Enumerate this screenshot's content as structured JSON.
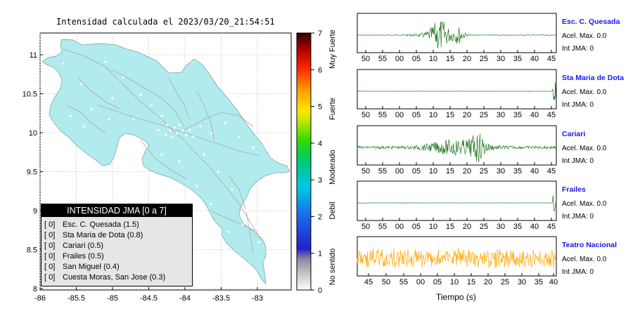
{
  "map": {
    "title": "Intensidad calculada el 2023/03/20_21:54:51",
    "x_ticks": [
      "-86",
      "-85.5",
      "-85",
      "-84.5",
      "-84",
      "-83.5",
      "-83"
    ],
    "y_ticks": [
      "11",
      "10.5",
      "10",
      "9.5",
      "9",
      "8.5",
      "8"
    ],
    "land_color": "#b2ebed",
    "legend": {
      "title": "INTENSIDAD JMA [0 a 7]",
      "items": [
        {
          "sym": "[ 0]",
          "label": "Esc. C. Quesada (1.5)"
        },
        {
          "sym": "[ 0]",
          "label": "Sta Maria de Dota (0.8)"
        },
        {
          "sym": "[ 0]",
          "label": "Cariari (0.5)"
        },
        {
          "sym": "[ 0]",
          "label": "Frailes (0.5)"
        },
        {
          "sym": "[ 0]",
          "label": "San Miguel (0.4)"
        },
        {
          "sym": "[ 0]",
          "label": "Cuesta Moras, San Jose (0.3)"
        }
      ]
    }
  },
  "colorbar": {
    "ticks": [
      "0",
      "1",
      "2",
      "3",
      "4",
      "5",
      "6",
      "7"
    ],
    "labels": [
      "No sentido",
      "Debil",
      "Moderado",
      "Fuerte",
      "Muy Fuerte"
    ]
  },
  "stations": [
    {
      "name": "Esc. C. Quesada",
      "accel": "Acel. Max. 0.0",
      "jma": "Int JMA: 0",
      "color": "#006400",
      "type": "burst",
      "ticks": [
        "50",
        "55",
        "00",
        "05",
        "10",
        "15",
        "20",
        "25",
        "30",
        "35",
        "40",
        "45"
      ]
    },
    {
      "name": "Sta Maria de Dota",
      "accel": "Acel. Max. 0.0",
      "jma": "Int JMA: 0",
      "color": "#006400",
      "type": "flat",
      "ticks": [
        "50",
        "55",
        "00",
        "05",
        "10",
        "15",
        "20",
        "25",
        "30",
        "35",
        "40",
        "45"
      ]
    },
    {
      "name": "Cariari",
      "accel": "Acel. Max. 0.0",
      "jma": "Int JMA: 0",
      "color": "#006400",
      "type": "broad",
      "ticks": [
        "50",
        "55",
        "00",
        "05",
        "10",
        "15",
        "20",
        "25",
        "30",
        "35",
        "40",
        "45"
      ]
    },
    {
      "name": "Frailes",
      "accel": "Acel. Max. 0.0",
      "jma": "Int JMA: 0",
      "color": "#006400",
      "type": "flat",
      "ticks": [
        "50",
        "55",
        "00",
        "05",
        "10",
        "15",
        "20",
        "25",
        "30",
        "35",
        "40",
        "45"
      ]
    },
    {
      "name": "Teatro Nacional",
      "accel": "Acel. Max. 0.0",
      "jma": "Int JMA: 0",
      "color": "#ffa500",
      "type": "noise",
      "ticks": [
        "45",
        "50",
        "55",
        "00",
        "05",
        "10",
        "15",
        "20",
        "25",
        "30",
        "35",
        "40"
      ]
    }
  ],
  "x_axis_label": "Tiempo (s)"
}
